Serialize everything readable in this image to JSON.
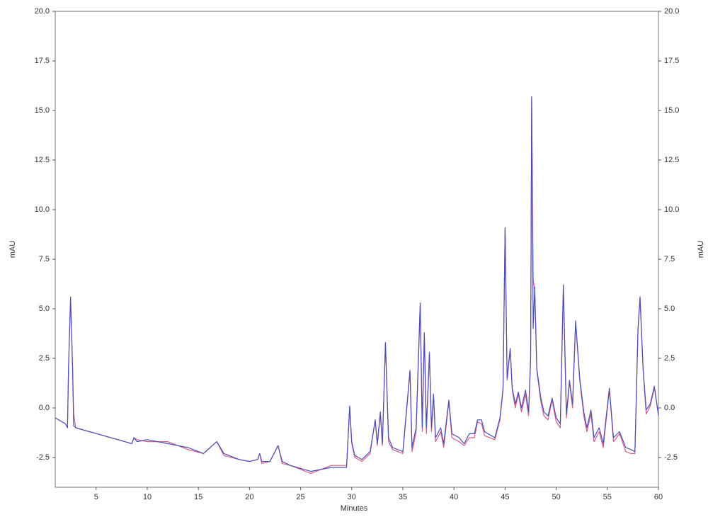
{
  "chart_data": {
    "type": "line",
    "xlabel": "Minutes",
    "ylabel": "mAU",
    "y2label": "mAU",
    "xlim": [
      1,
      60
    ],
    "xticks": [
      5,
      10,
      15,
      20,
      25,
      30,
      35,
      40,
      45,
      50,
      55,
      60
    ],
    "ylim": [
      -4,
      20
    ],
    "yticks": [
      {
        "value": -2.5,
        "label": "-2.5"
      },
      {
        "value": 0,
        "label": "0.0"
      },
      {
        "value": 2.5,
        "label": "2.5"
      },
      {
        "value": 5,
        "label": "5.0"
      },
      {
        "value": 7.5,
        "label": "7.5"
      },
      {
        "value": 10,
        "label": "10.0"
      },
      {
        "value": 12.5,
        "label": "12.5"
      },
      {
        "value": 15,
        "label": "15.0"
      },
      {
        "value": 17.5,
        "label": "17.5"
      },
      {
        "value": 20,
        "label": "20.0"
      }
    ],
    "y2lim": [
      -4,
      20
    ],
    "y2ticks": [
      {
        "value": -2.5,
        "label": "-2.5"
      },
      {
        "value": 0,
        "label": "0.0"
      },
      {
        "value": 2.5,
        "label": "2.5"
      },
      {
        "value": 5,
        "label": "5.0"
      },
      {
        "value": 7.5,
        "label": "7.5"
      },
      {
        "value": 10,
        "label": "10.0"
      },
      {
        "value": 12.5,
        "label": "12.5"
      },
      {
        "value": 15,
        "label": "15.0"
      },
      {
        "value": 17.5,
        "label": "17.5"
      },
      {
        "value": 20,
        "label": "20.0"
      }
    ],
    "x": [
      1.0,
      2.0,
      2.2,
      2.3,
      2.5,
      2.7,
      2.8,
      3.0,
      8.5,
      8.7,
      9,
      10,
      12,
      14,
      15.5,
      16.8,
      17.5,
      19,
      20,
      20.8,
      21,
      21.2,
      22,
      22.8,
      23.2,
      24,
      26,
      28,
      29.5,
      29.8,
      30.0,
      30.3,
      31,
      31.8,
      32.3,
      32.5,
      32.8,
      33.0,
      33.3,
      33.6,
      34,
      35,
      35.7,
      35.9,
      36.3,
      36.7,
      36.9,
      37.1,
      37.3,
      37.6,
      37.8,
      38.0,
      38.2,
      38.7,
      39.0,
      39.5,
      39.8,
      40.5,
      41,
      41.5,
      42.0,
      42.3,
      42.7,
      43,
      44,
      44.5,
      44.8,
      45.0,
      45.2,
      45.5,
      45.7,
      46,
      46.3,
      46.6,
      47,
      47.3,
      47.5,
      47.6,
      47.75,
      47.9,
      48.1,
      48.5,
      48.8,
      49.2,
      49.6,
      50,
      50.4,
      50.7,
      51,
      51.3,
      51.6,
      51.9,
      52.3,
      52.7,
      53,
      53.4,
      53.7,
      54.2,
      54.6,
      55.2,
      55.6,
      56.2,
      56.8,
      57.3,
      57.7,
      58.0,
      58.2,
      58.5,
      58.8,
      59.2,
      59.6,
      60
    ],
    "series": [
      {
        "color": "#d65a8a",
        "values": [
          -0.5,
          -0.8,
          -1.0,
          2.0,
          5.5,
          2.0,
          -0.3,
          -1.0,
          -1.8,
          -1.5,
          -1.6,
          -1.7,
          -1.7,
          -2.1,
          -2.3,
          -1.7,
          -2.4,
          -2.6,
          -2.7,
          -2.6,
          -2.3,
          -2.8,
          -2.7,
          -1.9,
          -2.8,
          -2.9,
          -3.3,
          -2.9,
          -2.9,
          0.0,
          -1.8,
          -2.5,
          -2.7,
          -2.3,
          -0.6,
          -1.9,
          -0.3,
          -1.9,
          3.2,
          -1.7,
          -2.1,
          -2.3,
          1.8,
          -2.2,
          -1.2,
          5.2,
          -1.2,
          3.7,
          -1.3,
          2.7,
          -1.2,
          0.6,
          -1.7,
          -1.2,
          -2.0,
          0.3,
          -1.5,
          -1.7,
          -1.9,
          -1.5,
          -1.5,
          -0.7,
          -0.8,
          -1.4,
          -1.6,
          -0.6,
          0.9,
          9.0,
          1.4,
          2.9,
          0.9,
          0.0,
          0.7,
          -0.2,
          0.7,
          -0.4,
          2.4,
          15.6,
          6.5,
          5.9,
          1.9,
          0.3,
          -0.4,
          -0.6,
          0.4,
          -0.7,
          -1.0,
          6.1,
          -0.5,
          1.3,
          0.0,
          4.3,
          1.4,
          -0.4,
          -1.2,
          -0.3,
          -1.7,
          -1.2,
          -2.0,
          0.9,
          -1.7,
          -1.3,
          -2.2,
          -2.3,
          -2.3,
          3.9,
          5.5,
          1.9,
          -0.3,
          0.1,
          1.0,
          -0.3
        ]
      },
      {
        "color": "#4a4fb5",
        "values": [
          -0.5,
          -0.8,
          -1.0,
          2.0,
          5.6,
          2.0,
          -0.9,
          -1.0,
          -1.8,
          -1.5,
          -1.7,
          -1.6,
          -1.8,
          -2.0,
          -2.3,
          -1.7,
          -2.3,
          -2.6,
          -2.7,
          -2.6,
          -2.3,
          -2.7,
          -2.7,
          -1.9,
          -2.7,
          -2.9,
          -3.2,
          -3.0,
          -3.0,
          0.1,
          -1.7,
          -2.4,
          -2.6,
          -2.2,
          -0.6,
          -1.8,
          -0.2,
          -1.8,
          3.3,
          -1.5,
          -2.0,
          -2.2,
          1.9,
          -2.0,
          -1.0,
          5.3,
          -1.0,
          3.8,
          -1.0,
          2.8,
          -1.0,
          0.7,
          -1.5,
          -1.0,
          -1.8,
          0.4,
          -1.3,
          -1.5,
          -1.8,
          -1.3,
          -1.3,
          -0.6,
          -0.6,
          -1.2,
          -1.5,
          -0.5,
          1.0,
          9.1,
          1.5,
          3.0,
          1.0,
          0.2,
          0.8,
          0.0,
          0.9,
          -0.2,
          2.5,
          15.7,
          4.0,
          6.1,
          2.0,
          0.5,
          -0.2,
          -0.4,
          0.5,
          -0.5,
          -0.8,
          6.2,
          -0.3,
          1.4,
          0.2,
          4.4,
          1.5,
          -0.2,
          -1.0,
          -0.1,
          -1.5,
          -1.0,
          -1.8,
          1.0,
          -1.5,
          -1.2,
          -2.0,
          -2.1,
          -2.2,
          4.0,
          5.6,
          2.0,
          -0.1,
          0.2,
          1.1,
          -0.4
        ]
      }
    ]
  }
}
